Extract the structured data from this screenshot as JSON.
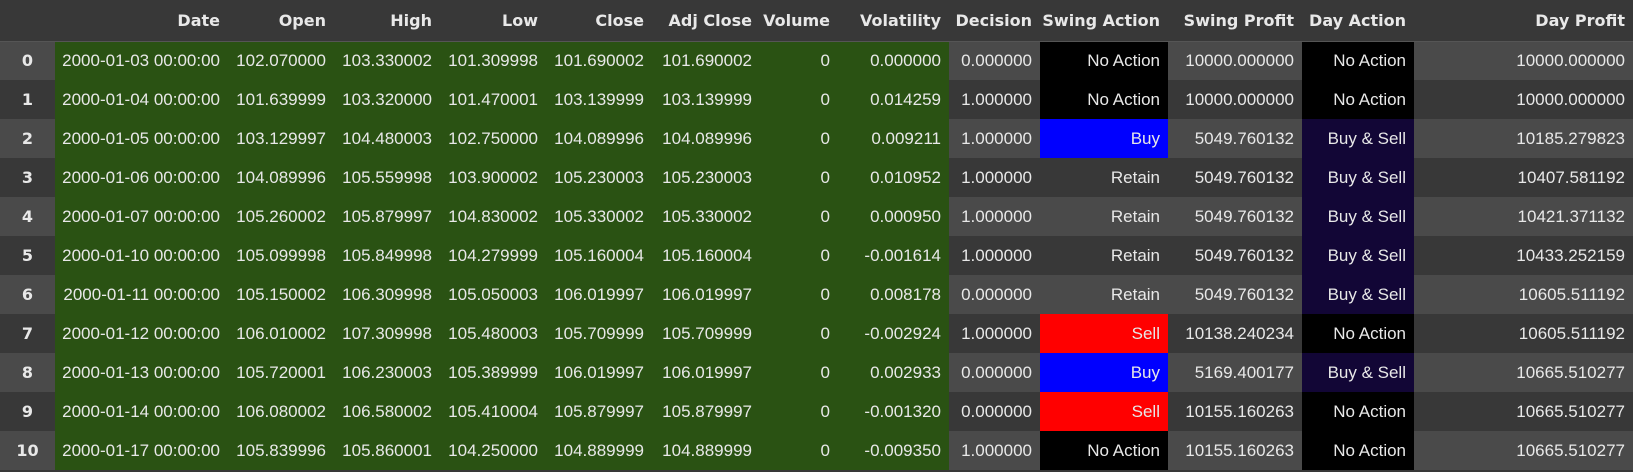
{
  "table": {
    "columns": [
      "Date",
      "Open",
      "High",
      "Low",
      "Close",
      "Adj Close",
      "Volume",
      "Volatility",
      "Decision",
      "Swing Action",
      "Swing Profit",
      "Day Action",
      "Day Profit"
    ],
    "rows": [
      [
        "0",
        "2000-01-03 00:00:00",
        "102.070000",
        "103.330002",
        "101.309998",
        "101.690002",
        "101.690002",
        "0",
        "0.000000",
        "0.000000",
        "No Action",
        "10000.000000",
        "No Action",
        "10000.000000"
      ],
      [
        "1",
        "2000-01-04 00:00:00",
        "101.639999",
        "103.320000",
        "101.470001",
        "103.139999",
        "103.139999",
        "0",
        "0.014259",
        "1.000000",
        "No Action",
        "10000.000000",
        "No Action",
        "10000.000000"
      ],
      [
        "2",
        "2000-01-05 00:00:00",
        "103.129997",
        "104.480003",
        "102.750000",
        "104.089996",
        "104.089996",
        "0",
        "0.009211",
        "1.000000",
        "Buy",
        "5049.760132",
        "Buy & Sell",
        "10185.279823"
      ],
      [
        "3",
        "2000-01-06 00:00:00",
        "104.089996",
        "105.559998",
        "103.900002",
        "105.230003",
        "105.230003",
        "0",
        "0.010952",
        "1.000000",
        "Retain",
        "5049.760132",
        "Buy & Sell",
        "10407.581192"
      ],
      [
        "4",
        "2000-01-07 00:00:00",
        "105.260002",
        "105.879997",
        "104.830002",
        "105.330002",
        "105.330002",
        "0",
        "0.000950",
        "1.000000",
        "Retain",
        "5049.760132",
        "Buy & Sell",
        "10421.371132"
      ],
      [
        "5",
        "2000-01-10 00:00:00",
        "105.099998",
        "105.849998",
        "104.279999",
        "105.160004",
        "105.160004",
        "0",
        "-0.001614",
        "1.000000",
        "Retain",
        "5049.760132",
        "Buy & Sell",
        "10433.252159"
      ],
      [
        "6",
        "2000-01-11 00:00:00",
        "105.150002",
        "106.309998",
        "105.050003",
        "106.019997",
        "106.019997",
        "0",
        "0.008178",
        "0.000000",
        "Retain",
        "5049.760132",
        "Buy & Sell",
        "10605.511192"
      ],
      [
        "7",
        "2000-01-12 00:00:00",
        "106.010002",
        "107.309998",
        "105.480003",
        "105.709999",
        "105.709999",
        "0",
        "-0.002924",
        "1.000000",
        "Sell",
        "10138.240234",
        "No Action",
        "10605.511192"
      ],
      [
        "8",
        "2000-01-13 00:00:00",
        "105.720001",
        "106.230003",
        "105.389999",
        "106.019997",
        "106.019997",
        "0",
        "0.002933",
        "0.000000",
        "Buy",
        "5169.400177",
        "Buy & Sell",
        "10665.510277"
      ],
      [
        "9",
        "2000-01-14 00:00:00",
        "106.080002",
        "106.580002",
        "105.410004",
        "105.879997",
        "105.879997",
        "0",
        "-0.001320",
        "0.000000",
        "Sell",
        "10155.160263",
        "No Action",
        "10665.510277"
      ],
      [
        "10",
        "2000-01-17 00:00:00",
        "105.839996",
        "105.860001",
        "104.250000",
        "104.889999",
        "104.889999",
        "0",
        "-0.009350",
        "1.000000",
        "No Action",
        "10155.160263",
        "No Action",
        "10665.510277"
      ]
    ]
  },
  "colors": {
    "header_bg": "#383838",
    "row_odd_bg": "#4a4a4a",
    "row_even_bg": "#383838",
    "green_highlight": "#2a5213",
    "no_action": "#000000",
    "buy": "#0000ff",
    "sell": "#ff0000",
    "buy_and_sell": "#120636",
    "text": "#e8e8e8"
  }
}
